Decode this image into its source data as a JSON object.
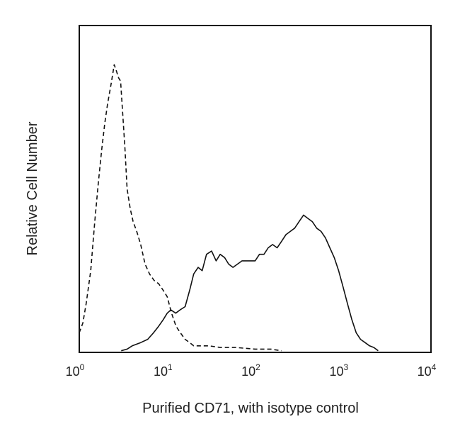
{
  "chart_data": {
    "type": "line",
    "xlabel": "Purified CD71, with isotype control",
    "ylabel": "Relative Cell Number",
    "x_scale": "log",
    "xlim": [
      1,
      10000
    ],
    "ylim": [
      0,
      100
    ],
    "grid": false,
    "x_ticks": [
      {
        "value": 1,
        "base": "10",
        "exp": "0"
      },
      {
        "value": 10,
        "base": "10",
        "exp": "1"
      },
      {
        "value": 100,
        "base": "10",
        "exp": "2"
      },
      {
        "value": 1000,
        "base": "10",
        "exp": "3"
      },
      {
        "value": 10000,
        "base": "10",
        "exp": "4"
      }
    ],
    "series": [
      {
        "style": "dashed",
        "color": "#111111",
        "x": [
          1.0,
          1.1,
          1.2,
          1.35,
          1.5,
          1.65,
          1.8,
          1.95,
          2.1,
          2.3,
          2.5,
          2.65,
          2.8,
          2.95,
          3.1,
          3.3,
          3.5,
          3.8,
          4.1,
          4.5,
          5.0,
          5.6,
          6.3,
          7.1,
          8.0,
          9.0,
          10.0,
          11.2,
          12.6,
          14.1,
          16.0,
          18.0,
          20.0,
          25.0,
          30.0,
          40.0,
          60.0,
          100.0,
          150.0,
          200.0
        ],
        "y": [
          6,
          9,
          15,
          25,
          40,
          52,
          62,
          70,
          76,
          82,
          88,
          86,
          84,
          83,
          74,
          63,
          50,
          44,
          40,
          37,
          33,
          27,
          24,
          22,
          21,
          19,
          17,
          12,
          8,
          6,
          4,
          3,
          2,
          2,
          2,
          1.5,
          1.5,
          1,
          1,
          0.5
        ]
      },
      {
        "style": "solid",
        "color": "#111111",
        "x": [
          3.0,
          3.5,
          4.0,
          5.0,
          6.0,
          7.0,
          8.0,
          9.0,
          10.0,
          11.0,
          12.5,
          14.0,
          16.0,
          18.0,
          20.0,
          22.5,
          25.0,
          28.0,
          32.0,
          36.0,
          40.0,
          45.0,
          50.0,
          56.0,
          63.0,
          71.0,
          80.0,
          90.0,
          100.0,
          112.0,
          126.0,
          141.0,
          158.0,
          178.0,
          200.0,
          224.0,
          251.0,
          282.0,
          316.0,
          355.0,
          398.0,
          447.0,
          501.0,
          562.0,
          631.0,
          708.0,
          794.0,
          891.0,
          1000.0,
          1120.0,
          1260.0,
          1410.0,
          1580.0,
          1780.0,
          2000.0,
          2240.0,
          2510.0
        ],
        "y": [
          0.5,
          1,
          2,
          3,
          4,
          6,
          8,
          10,
          12,
          13,
          12,
          13,
          14,
          19,
          24,
          26,
          25,
          30,
          31,
          28,
          30,
          29,
          27,
          26,
          27,
          28,
          28,
          28,
          28,
          30,
          30,
          32,
          33,
          32,
          34,
          36,
          37,
          38,
          40,
          42,
          41,
          40,
          38,
          37,
          35,
          32,
          29,
          25,
          20,
          15,
          10,
          6,
          4,
          3,
          2,
          1.5,
          0.5
        ]
      }
    ]
  }
}
